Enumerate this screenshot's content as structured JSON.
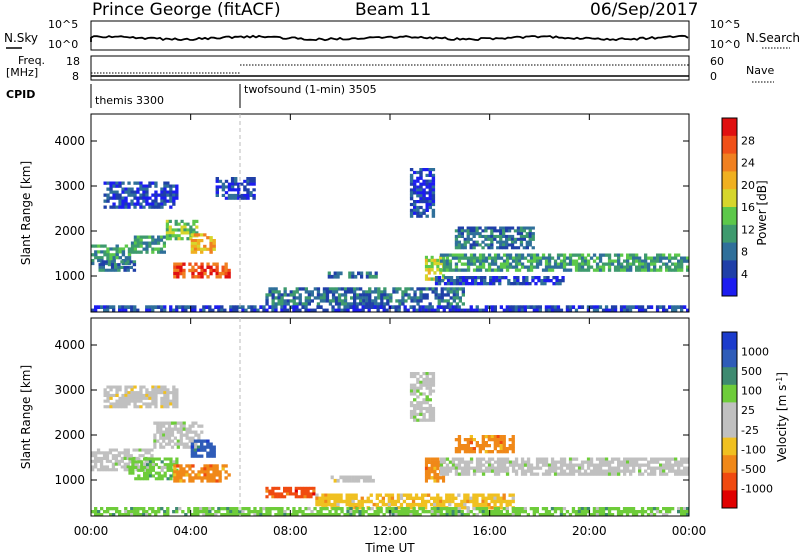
{
  "header": {
    "station": "Prince George (fitACF)",
    "beam": "Beam 11",
    "date": "06/Sep/2017"
  },
  "top_panel": {
    "nsky_label": "N.Sky",
    "nsearch_label": "N.Search",
    "freq_label_1": "Freq.",
    "freq_label_2": "[MHz]",
    "nave_label": "Nave",
    "cpid_label": "CPID",
    "count_tick_top": "10^5",
    "count_tick_bottom": "10^0",
    "freq_tick_top": "18",
    "freq_tick_bottom": "8",
    "nave_tick_top": "60",
    "nave_tick_bottom": "0",
    "cpid_segments": [
      {
        "label": "themis 3300",
        "start_hour": 0
      },
      {
        "label": "twofsound (1-min) 3505",
        "start_hour": 6
      }
    ]
  },
  "colors": {
    "power_scale": [
      "#1c1cf0",
      "#1f3fa8",
      "#2f6f9a",
      "#3e9a6e",
      "#5cc84a",
      "#d6d62c",
      "#f0b020",
      "#f08020",
      "#f05018",
      "#e01010"
    ],
    "velocity_scale": [
      "#1c3ccc",
      "#2f5cb8",
      "#3e8a70",
      "#6ecc3a",
      "#c0c0c0",
      "#c0c0c0",
      "#f0c020",
      "#f08818",
      "#f04a10",
      "#e00000"
    ]
  },
  "chart_data": [
    {
      "type": "heatmap",
      "name": "power",
      "ylabel": "Slant Range [km]",
      "colorbar_label": "Power [dB]",
      "ylim": [
        200,
        4600
      ],
      "yticks": [
        1000,
        2000,
        3000,
        4000
      ],
      "colorbar_ticks": [
        "4",
        "8",
        "12",
        "16",
        "20",
        "24",
        "28"
      ],
      "colorbar_range": [
        0,
        32
      ],
      "regions": [
        {
          "t0": 0.0,
          "t1": 1.6,
          "r0": 1250,
          "r1": 1700,
          "v": 9
        },
        {
          "t0": 1.6,
          "t1": 3.0,
          "r0": 1500,
          "r1": 1900,
          "v": 11
        },
        {
          "t0": 3.0,
          "t1": 4.3,
          "r0": 1800,
          "r1": 2250,
          "v": 14
        },
        {
          "t0": 4.0,
          "t1": 5.0,
          "r0": 1500,
          "r1": 1950,
          "v": 20
        },
        {
          "t0": 3.3,
          "t1": 5.6,
          "r0": 950,
          "r1": 1300,
          "v": 27
        },
        {
          "t0": 0.3,
          "t1": 1.8,
          "r0": 1100,
          "r1": 1350,
          "v": 7
        },
        {
          "t0": 0.5,
          "t1": 3.5,
          "r0": 2500,
          "r1": 3100,
          "v": 5
        },
        {
          "t0": 5.0,
          "t1": 6.6,
          "r0": 2700,
          "r1": 3200,
          "v": 5
        },
        {
          "t0": 13.4,
          "t1": 14.2,
          "r0": 900,
          "r1": 1450,
          "v": 16
        },
        {
          "t0": 14.0,
          "t1": 24.0,
          "r0": 1100,
          "r1": 1500,
          "v": 11
        },
        {
          "t0": 14.6,
          "t1": 17.8,
          "r0": 1600,
          "r1": 2100,
          "v": 7
        },
        {
          "t0": 13.8,
          "t1": 19.0,
          "r0": 800,
          "r1": 1000,
          "v": 5
        },
        {
          "t0": 9.5,
          "t1": 11.5,
          "r0": 950,
          "r1": 1100,
          "v": 8
        },
        {
          "t0": 12.8,
          "t1": 13.8,
          "r0": 2300,
          "r1": 3400,
          "v": 5
        },
        {
          "t0": 7.0,
          "t1": 15.0,
          "r0": 350,
          "r1": 750,
          "v": 8
        },
        {
          "t0": 0.0,
          "t1": 24.0,
          "r0": 200,
          "r1": 350,
          "v": 5
        }
      ]
    },
    {
      "type": "heatmap",
      "name": "velocity",
      "ylabel": "Slant Range [km]",
      "xlabel": "Time UT",
      "colorbar_label": "Velocity [m s^-1]",
      "ylim": [
        200,
        4600
      ],
      "yticks": [
        1000,
        2000,
        3000,
        4000
      ],
      "xticks": [
        "00:00",
        "04:00",
        "08:00",
        "12:00",
        "16:00",
        "20:00",
        "00:00"
      ],
      "xlim_hours": [
        0,
        24
      ],
      "colorbar_ticks": [
        "1000",
        "500",
        "100",
        "25",
        "-25",
        "-100",
        "-500",
        "-1000"
      ],
      "regions": [
        {
          "t0": 0.0,
          "t1": 2.5,
          "r0": 1200,
          "r1": 1700,
          "c": 4
        },
        {
          "t0": 2.5,
          "t1": 4.5,
          "r0": 1700,
          "r1": 2300,
          "c": 4
        },
        {
          "t0": 1.5,
          "t1": 3.5,
          "r0": 1000,
          "r1": 1500,
          "c": 3
        },
        {
          "t0": 3.3,
          "t1": 5.6,
          "r0": 950,
          "r1": 1350,
          "c": 7
        },
        {
          "t0": 4.0,
          "t1": 5.0,
          "r0": 1500,
          "r1": 1900,
          "c": 1
        },
        {
          "t0": 0.5,
          "t1": 3.5,
          "r0": 2600,
          "r1": 3100,
          "c": 5
        },
        {
          "t0": 13.4,
          "t1": 14.2,
          "r0": 950,
          "r1": 1500,
          "c": 7
        },
        {
          "t0": 14.6,
          "t1": 17.0,
          "r0": 1600,
          "r1": 2000,
          "c": 7
        },
        {
          "t0": 14.0,
          "t1": 24.0,
          "r0": 1100,
          "r1": 1500,
          "c": 4
        },
        {
          "t0": 9.5,
          "t1": 11.5,
          "r0": 950,
          "r1": 1100,
          "c": 5
        },
        {
          "t0": 7.0,
          "t1": 9.0,
          "r0": 600,
          "r1": 850,
          "c": 8
        },
        {
          "t0": 9.0,
          "t1": 17.0,
          "r0": 350,
          "r1": 700,
          "c": 6
        },
        {
          "t0": 12.8,
          "t1": 13.8,
          "r0": 2300,
          "r1": 3400,
          "c": 4
        },
        {
          "t0": 0.0,
          "t1": 24.0,
          "r0": 200,
          "r1": 400,
          "c": 3
        }
      ]
    }
  ]
}
